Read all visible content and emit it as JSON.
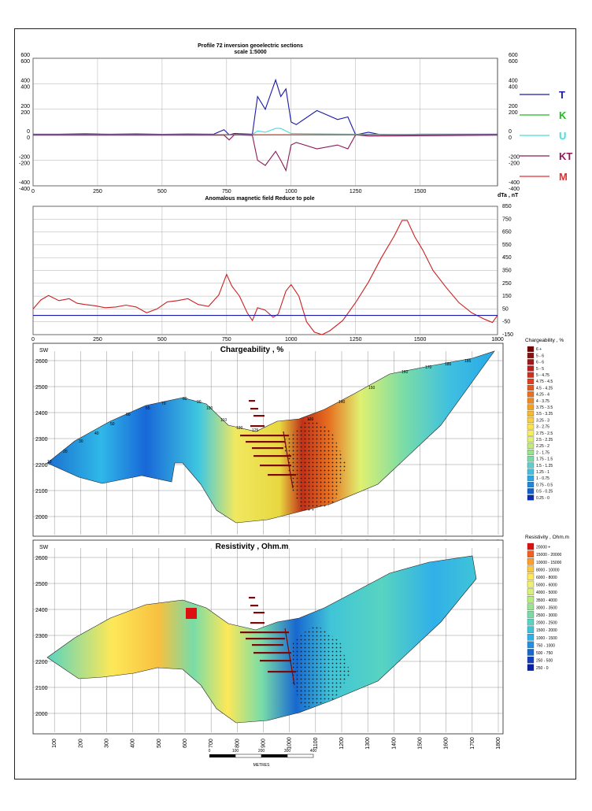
{
  "chart_data": [
    {
      "type": "line",
      "title": "Profile 72 inversion geoelectric sections",
      "subtitle": "scale 1:5000",
      "xticks": [
        "0",
        "250",
        "500",
        "750",
        "1000",
        "1250",
        "1500"
      ],
      "xlim": [
        0,
        1800
      ],
      "y_left_ticks_red": [
        "600",
        "400",
        "200",
        "0",
        "-200",
        "-400"
      ],
      "y_left_ticks_blue": [
        "600",
        "400",
        "200",
        "0",
        "-200",
        "-400"
      ],
      "y_right_ticks_cyan": [
        "600",
        "400",
        "200",
        "0",
        "-200",
        "-400"
      ],
      "y_right_ticks_green": [
        "600",
        "400",
        "200",
        "0",
        "-200",
        "-400"
      ],
      "ylim": [
        -400,
        600
      ],
      "legend": [
        {
          "name": "T",
          "color": "#1a1aa8"
        },
        {
          "name": "K",
          "color": "#22bb22"
        },
        {
          "name": "U",
          "color": "#44dddd"
        },
        {
          "name": "KT",
          "color": "#8b1a5a"
        },
        {
          "name": "M",
          "color": "#e03030"
        }
      ],
      "series": [
        {
          "name": "T",
          "color": "#1a1aa8",
          "x": [
            0,
            100,
            200,
            250,
            300,
            400,
            500,
            600,
            700,
            740,
            760,
            780,
            850,
            870,
            900,
            940,
            960,
            980,
            1000,
            1020,
            1100,
            1180,
            1220,
            1250,
            1300,
            1350,
            1500,
            1800
          ],
          "y": [
            5,
            5,
            8,
            6,
            5,
            7,
            4,
            6,
            5,
            40,
            0,
            10,
            5,
            300,
            200,
            430,
            300,
            360,
            100,
            80,
            190,
            120,
            140,
            0,
            20,
            0,
            5,
            5
          ]
        },
        {
          "name": "K",
          "color": "#22bb22",
          "x": [
            0,
            1800
          ],
          "y": [
            0,
            0
          ]
        },
        {
          "name": "U",
          "color": "#44dddd",
          "x": [
            0,
            850,
            870,
            900,
            940,
            960,
            980,
            1000,
            1250,
            1800
          ],
          "y": [
            2,
            2,
            30,
            20,
            50,
            50,
            30,
            10,
            5,
            2
          ]
        },
        {
          "name": "KT",
          "color": "#8b1a5a",
          "x": [
            0,
            740,
            760,
            780,
            850,
            870,
            900,
            940,
            960,
            980,
            1000,
            1020,
            1100,
            1180,
            1220,
            1250,
            1300,
            1800
          ],
          "y": [
            -3,
            -3,
            -40,
            0,
            -5,
            -200,
            -240,
            -130,
            -200,
            -280,
            -80,
            -60,
            -110,
            -80,
            -110,
            0,
            -10,
            -3
          ]
        },
        {
          "name": "M",
          "color": "#e03030",
          "x": [
            0,
            1800
          ],
          "y": [
            0,
            0
          ]
        }
      ]
    },
    {
      "type": "line",
      "title": "Anomalous magnetic field Reduce to pole",
      "ylabel": "dTa , nT",
      "xticks": [
        "0",
        "250",
        "500",
        "750",
        "1000",
        "1250",
        "1500",
        "1800"
      ],
      "yticks": [
        "850",
        "750",
        "650",
        "550",
        "450",
        "350",
        "250",
        "150",
        "50",
        "-50",
        "-150"
      ],
      "xlim": [
        0,
        1800
      ],
      "ylim": [
        -150,
        850
      ],
      "series": [
        {
          "name": "",
          "color": "#cc2020",
          "x": [
            0,
            30,
            60,
            100,
            140,
            170,
            200,
            240,
            280,
            320,
            360,
            400,
            440,
            480,
            520,
            560,
            600,
            640,
            680,
            720,
            750,
            770,
            800,
            830,
            850,
            870,
            900,
            930,
            950,
            980,
            1000,
            1030,
            1060,
            1090,
            1120,
            1150,
            1200,
            1250,
            1300,
            1350,
            1400,
            1430,
            1450,
            1480,
            1510,
            1550,
            1600,
            1650,
            1700,
            1750,
            1780,
            1800
          ],
          "y": [
            50,
            120,
            155,
            115,
            130,
            95,
            85,
            75,
            60,
            65,
            80,
            65,
            20,
            50,
            105,
            115,
            130,
            85,
            70,
            160,
            320,
            230,
            150,
            20,
            -40,
            60,
            40,
            -15,
            10,
            190,
            240,
            150,
            -50,
            -130,
            -150,
            -120,
            -40,
            100,
            260,
            450,
            620,
            740,
            740,
            610,
            510,
            350,
            220,
            100,
            20,
            -30,
            -55,
            0
          ]
        },
        {
          "name": "",
          "color": "#1a1aa8",
          "x": [
            0,
            1800
          ],
          "y": [
            0,
            0
          ]
        }
      ]
    },
    {
      "type": "heatmap",
      "title": "Chargeability , %",
      "xticks": [
        "100",
        "200",
        "300",
        "400",
        "500",
        "600",
        "700",
        "800",
        "900",
        "1000",
        "1100",
        "1200",
        "1300",
        "1400",
        "1500",
        "1600",
        "1700",
        "1800"
      ],
      "yticks": [
        "2600",
        "2500",
        "2400",
        "2300",
        "2200",
        "2100",
        "2000"
      ],
      "label_sw": "SW",
      "contour_labels": [
        "10",
        "20",
        "30",
        "40",
        "50",
        "60",
        "65",
        "70",
        "80",
        "90",
        "100",
        "110",
        "120",
        "125",
        "130",
        "140",
        "150",
        "160",
        "170",
        "180",
        "185"
      ],
      "legend_title": "Chargeability , %",
      "legend": [
        {
          "label": "6 +",
          "color": "#7a0000"
        },
        {
          "label": "5 - 6",
          "color": "#8b1010"
        },
        {
          "label": "6 - 6",
          "color": "#a01818"
        },
        {
          "label": "5 - 5",
          "color": "#b82020"
        },
        {
          "label": "5 - 4.75",
          "color": "#cc3020"
        },
        {
          "label": "4.75 - 4.5",
          "color": "#dd4020"
        },
        {
          "label": "4.5 - 4.25",
          "color": "#e05a20"
        },
        {
          "label": "4.25 - 4",
          "color": "#e87020"
        },
        {
          "label": "4 - 3.75",
          "color": "#ef8a20"
        },
        {
          "label": "3.75 - 3.5",
          "color": "#f4a020"
        },
        {
          "label": "3.5 - 3.25",
          "color": "#f8b830"
        },
        {
          "label": "3.25 - 3",
          "color": "#fcd040"
        },
        {
          "label": "3 - 2.75",
          "color": "#fde44a"
        },
        {
          "label": "2.75 - 2.5",
          "color": "#f6f05a"
        },
        {
          "label": "2.5 - 2.25",
          "color": "#e0f070"
        },
        {
          "label": "2.25 - 2",
          "color": "#c0ec78"
        },
        {
          "label": "2 - 1.75",
          "color": "#98e48a"
        },
        {
          "label": "1.75 - 1.5",
          "color": "#78dca8"
        },
        {
          "label": "1.5 - 1.25",
          "color": "#5cd0c8"
        },
        {
          "label": "1.25 - 1",
          "color": "#40c0e0"
        },
        {
          "label": "1 - 0.75",
          "color": "#28a8e8"
        },
        {
          "label": "0.75 - 0.5",
          "color": "#1888e0"
        },
        {
          "label": "0.5 - 0.25",
          "color": "#1060d0"
        },
        {
          "label": "0.25 - 0",
          "color": "#0830b0"
        }
      ]
    },
    {
      "type": "heatmap",
      "title": "Resistivity , Ohm.m",
      "xticks": [
        "100",
        "200",
        "300",
        "400",
        "500",
        "600",
        "700",
        "800",
        "900",
        "1000",
        "1100",
        "1200",
        "1300",
        "1400",
        "1500",
        "1600",
        "1700",
        "1800"
      ],
      "yticks": [
        "2600",
        "2500",
        "2400",
        "2300",
        "2200",
        "2100",
        "2000"
      ],
      "label_sw": "SW",
      "legend_title": "Resistivity , Ohm.m",
      "legend": [
        {
          "label": "20000 +",
          "color": "#dd1010"
        },
        {
          "label": "15000 - 20000",
          "color": "#f06020"
        },
        {
          "label": "10000 - 15000",
          "color": "#f8a030"
        },
        {
          "label": "8000 - 10000",
          "color": "#fcc840"
        },
        {
          "label": "6000 - 8000",
          "color": "#fde858"
        },
        {
          "label": "5000 - 6000",
          "color": "#f0f070"
        },
        {
          "label": "4000 - 5000",
          "color": "#d8f078"
        },
        {
          "label": "3500 - 4000",
          "color": "#b8ec80"
        },
        {
          "label": "3000 - 3500",
          "color": "#98e490"
        },
        {
          "label": "2500 - 3000",
          "color": "#78dca8"
        },
        {
          "label": "2000 - 2500",
          "color": "#58d4c0"
        },
        {
          "label": "1500 - 2000",
          "color": "#40c4d8"
        },
        {
          "label": "1000 - 1500",
          "color": "#30b0e8"
        },
        {
          "label": "750 - 1000",
          "color": "#2090e0"
        },
        {
          "label": "500 - 750",
          "color": "#1868d0"
        },
        {
          "label": "250 - 500",
          "color": "#1040c0"
        },
        {
          "label": "250 - 0",
          "color": "#0820a8"
        }
      ],
      "scale_bar": {
        "labels": [
          "0",
          "100",
          "200",
          "300",
          "400"
        ],
        "unit": "METRES"
      }
    }
  ]
}
